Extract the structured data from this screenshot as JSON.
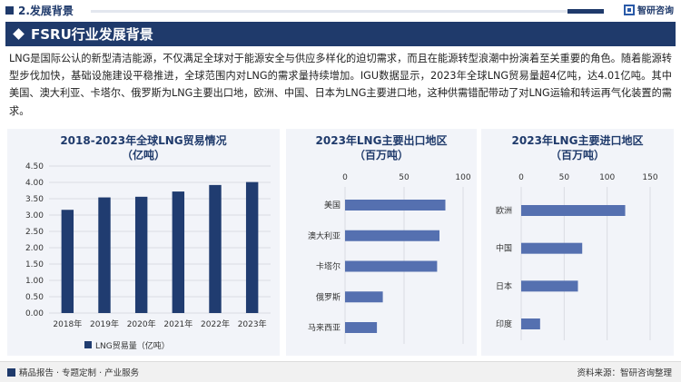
{
  "header": {
    "section_label": "2.发展背景",
    "logo_text": "智研咨询",
    "logo_icon": "zhiyan-logo-icon"
  },
  "banner": {
    "title": "FSRU行业发展背景"
  },
  "intro_text": "LNG是国际公认的新型清洁能源，不仅满足全球对于能源安全与供应多样化的迫切需求，而且在能源转型浪潮中扮演着至关重要的角色。随着能源转型步伐加快，基础设施建设平稳推进，全球范围内对LNG的需求量持续增加。IGU数据显示，2023年全球LNG贸易量超4亿吨，达4.01亿吨。其中美国、澳大利亚、卡塔尔、俄罗斯为LNG主要出口地，欧洲、中国、日本为LNG主要进口地，这种供需错配带动了对LNG运输和转运再气化装置的需求。",
  "colors": {
    "primary": "#1f3a6b",
    "bar": "#203c70",
    "hbar": "#5570b0",
    "panel_bg": "#f2f4f9"
  },
  "chart_data": [
    {
      "type": "bar",
      "title": "2018-2023年全球LNG贸易情况",
      "subtitle": "（亿吨）",
      "categories": [
        "2018年",
        "2019年",
        "2020年",
        "2021年",
        "2022年",
        "2023年"
      ],
      "series": [
        {
          "name": "LNG贸易量（亿吨）",
          "values": [
            3.16,
            3.54,
            3.56,
            3.72,
            3.92,
            4.01
          ]
        }
      ],
      "ylim": [
        0,
        4.5
      ],
      "yticks": [
        "0.00",
        "0.50",
        "1.00",
        "1.50",
        "2.00",
        "2.50",
        "3.00",
        "3.50",
        "4.00",
        "4.50"
      ],
      "grid": true,
      "legend": "bottom"
    },
    {
      "type": "bar",
      "orientation": "horizontal",
      "title": "2023年LNG主要出口地区",
      "subtitle": "（百万吨）",
      "categories": [
        "美国",
        "澳大利亚",
        "卡塔尔",
        "俄罗斯",
        "马来西亚"
      ],
      "values": [
        85,
        80,
        78,
        32,
        27
      ],
      "xlim": [
        0,
        100
      ],
      "xticks": [
        "0",
        "50",
        "100"
      ],
      "axis_position": "top",
      "grid": true
    },
    {
      "type": "bar",
      "orientation": "horizontal",
      "title": "2023年LNG主要进口地区",
      "subtitle": "（百万吨）",
      "categories": [
        "欧洲",
        "中国",
        "日本",
        "印度"
      ],
      "values": [
        121,
        71,
        66,
        22
      ],
      "xlim": [
        0,
        150
      ],
      "xticks": [
        "0",
        "50",
        "100",
        "150"
      ],
      "axis_position": "top",
      "grid": true
    }
  ],
  "footer": {
    "left_text": "精品报告 · 专题定制 · 产业服务",
    "right_text": "资料来源：智研咨询整理"
  }
}
